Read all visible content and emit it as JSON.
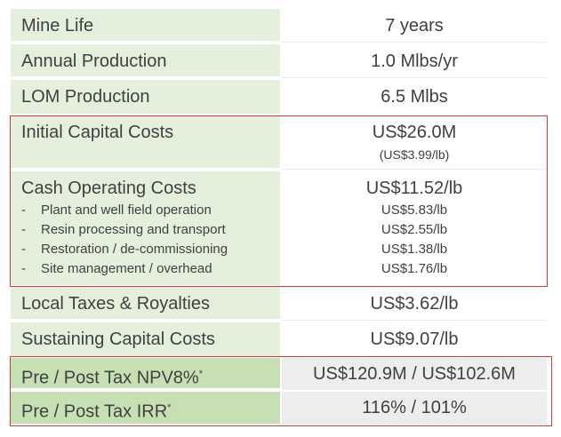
{
  "rows": [
    {
      "label": "Mine Life",
      "value": "7 years"
    },
    {
      "label": "Annual Production",
      "value": "1.0 Mlbs/yr"
    },
    {
      "label": "LOM Production",
      "value": "6.5 Mlbs"
    }
  ],
  "capital": {
    "label": "Initial Capital Costs",
    "value": "US$26.0M",
    "note": "(US$3.99/lb)"
  },
  "operating": {
    "label": "Cash Operating Costs",
    "value": "US$11.52/lb",
    "items": [
      {
        "dash": "-",
        "label": "Plant and well field operation",
        "value": "US$5.83/lb"
      },
      {
        "dash": "-",
        "label": "Resin processing and transport",
        "value": "US$2.55/lb"
      },
      {
        "dash": "-",
        "label": "Restoration / de-commissioning",
        "value": "US$1.38/lb"
      },
      {
        "dash": "-",
        "label": "Site management / overhead",
        "value": "US$1.76/lb"
      }
    ]
  },
  "rows2": [
    {
      "label": "Local Taxes & Royalties",
      "value": "US$3.62/lb"
    },
    {
      "label": "Sustaining Capital Costs",
      "value": "US$9.07/lb"
    }
  ],
  "npv": {
    "label": "Pre / Post Tax NPV8%",
    "sup": "*",
    "value": "US$120.9M / US$102.6M"
  },
  "irr": {
    "label": "Pre / Post Tax IRR",
    "sup": "*",
    "value": "116% / 101%"
  }
}
